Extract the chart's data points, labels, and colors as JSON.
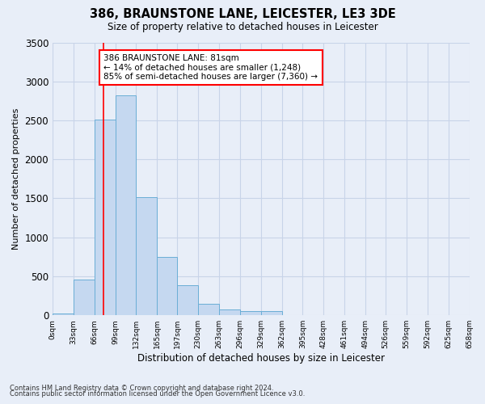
{
  "title": "386, BRAUNSTONE LANE, LEICESTER, LE3 3DE",
  "subtitle": "Size of property relative to detached houses in Leicester",
  "xlabel": "Distribution of detached houses by size in Leicester",
  "ylabel": "Number of detached properties",
  "bar_values": [
    20,
    460,
    2510,
    2820,
    1520,
    750,
    390,
    145,
    75,
    55,
    55,
    0,
    0,
    0,
    0,
    0,
    0,
    0,
    0,
    0
  ],
  "bin_edges": [
    0,
    33,
    66,
    99,
    132,
    165,
    197,
    230,
    263,
    296,
    329,
    362,
    395,
    428,
    461,
    494,
    526,
    559,
    592,
    625,
    658
  ],
  "tick_labels": [
    "0sqm",
    "33sqm",
    "66sqm",
    "99sqm",
    "132sqm",
    "165sqm",
    "197sqm",
    "230sqm",
    "263sqm",
    "296sqm",
    "329sqm",
    "362sqm",
    "395sqm",
    "428sqm",
    "461sqm",
    "494sqm",
    "526sqm",
    "559sqm",
    "592sqm",
    "625sqm",
    "658sqm"
  ],
  "bar_color": "#c5d8f0",
  "bar_edge_color": "#6aaed6",
  "grid_color": "#c8d4e8",
  "bg_color": "#e8eef8",
  "red_line_x": 81,
  "annotation_text": "386 BRAUNSTONE LANE: 81sqm\n← 14% of detached houses are smaller (1,248)\n85% of semi-detached houses are larger (7,360) →",
  "annotation_box_color": "white",
  "annotation_box_edge_color": "red",
  "ylim": [
    0,
    3500
  ],
  "yticks": [
    0,
    500,
    1000,
    1500,
    2000,
    2500,
    3000,
    3500
  ],
  "footer1": "Contains HM Land Registry data © Crown copyright and database right 2024.",
  "footer2": "Contains public sector information licensed under the Open Government Licence v3.0."
}
